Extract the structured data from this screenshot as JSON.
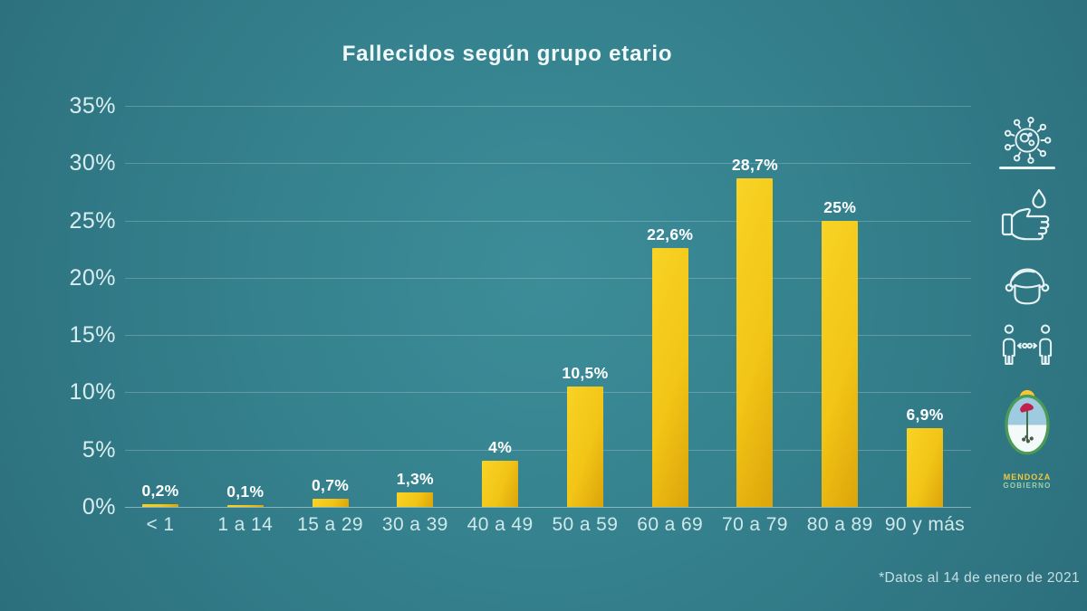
{
  "chart": {
    "title": "Fallecidos según grupo etario",
    "footnote": "*Datos al 14 de enero de 2021"
  },
  "chart_data": {
    "type": "bar",
    "title": "Fallecidos según grupo etario",
    "categories": [
      "< 1",
      "1 a 14",
      "15 a 29",
      "30 a 39",
      "40 a 49",
      "50 a 59",
      "60 a 69",
      "70 a 79",
      "80 a 89",
      "90 y más"
    ],
    "values": [
      0.2,
      0.1,
      0.7,
      1.3,
      4,
      10.5,
      22.6,
      28.7,
      25,
      6.9
    ],
    "value_labels": [
      "0,2%",
      "0,1%",
      "0,7%",
      "1,3%",
      "4%",
      "10,5%",
      "22,6%",
      "28,7%",
      "25%",
      "6,9%"
    ],
    "y_ticks": [
      "0%",
      "5%",
      "10%",
      "15%",
      "20%",
      "25%",
      "30%",
      "35%"
    ],
    "ylim": [
      0,
      35
    ],
    "grid": true,
    "legend": "none",
    "xlabel": "",
    "ylabel": "",
    "colors": {
      "bar": "#F2C516",
      "bar_dark": "#DCA40A",
      "background": "#35818E",
      "text": "#FFFFFF",
      "axis_text": "#D9EDEF"
    }
  },
  "sidebar": {
    "icons": [
      {
        "name": "virus-icon"
      },
      {
        "name": "hand-wash-icon"
      },
      {
        "name": "face-mask-icon"
      },
      {
        "name": "social-distance-icon"
      }
    ],
    "logo": {
      "line1": "MENDOZA",
      "line2": "GOBIERNO"
    }
  },
  "footnote": "*Datos al 14 de enero de 2021"
}
